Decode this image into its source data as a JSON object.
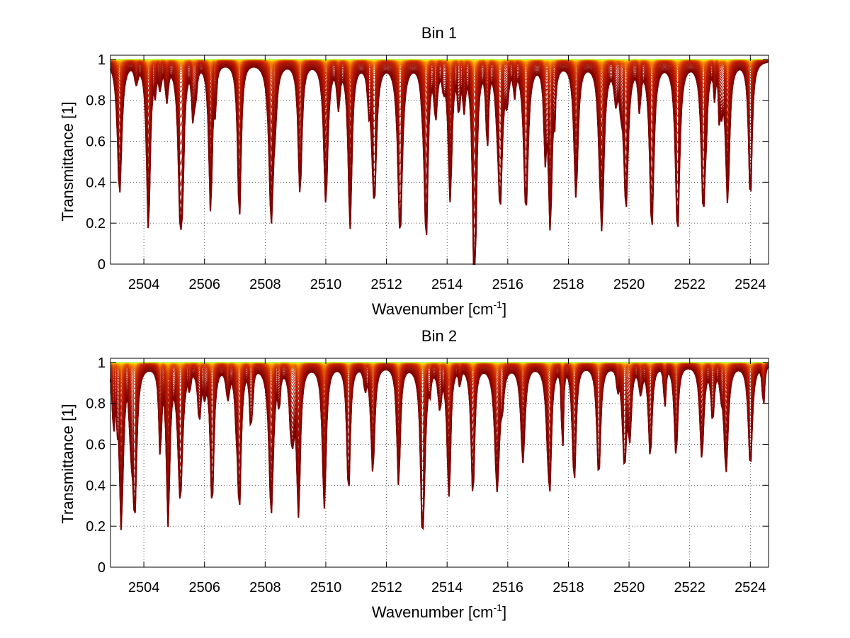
{
  "chart_data": [
    {
      "type": "line",
      "title": "Bin 1",
      "xlabel": "Wavenumber [cm",
      "xlabel_sup": "-1",
      "xlabel_tail": "]",
      "ylabel": "Transmittance [1]",
      "xlim": [
        2502.9,
        2524.6
      ],
      "ylim": [
        0,
        1.02
      ],
      "xticks": [
        2504,
        2506,
        2508,
        2510,
        2512,
        2514,
        2516,
        2518,
        2520,
        2522,
        2524
      ],
      "yticks": [
        0,
        0.2,
        0.4,
        0.6,
        0.8,
        1
      ],
      "ytick_labels": [
        "0",
        "0.2",
        "0.4",
        "0.6",
        "0.8",
        "1"
      ],
      "grid": true,
      "grid_style": "dotted",
      "series_count": 60,
      "line_baselines": [
        0.0,
        0.012,
        0.026,
        0.045,
        0.07,
        0.1,
        0.135,
        0.175,
        0.22,
        0.27,
        0.32,
        0.37,
        0.42,
        0.47,
        0.52,
        0.565,
        0.61,
        0.65,
        0.69,
        0.725,
        0.76,
        0.79,
        0.815,
        0.84,
        0.86,
        0.878,
        0.893,
        0.906,
        0.918,
        0.928,
        0.937,
        0.945,
        0.952,
        0.958,
        0.963,
        0.968,
        0.972,
        0.976,
        0.979,
        0.982,
        0.984,
        0.986,
        0.988,
        0.99,
        0.991,
        0.992,
        0.993,
        0.994,
        0.995,
        0.996
      ],
      "line_centers": [
        2503.2,
        2504.15,
        2505.2,
        2506.2,
        2507.15,
        2508.2,
        2509.15,
        2510.0,
        2510.8,
        2511.6,
        2512.45,
        2513.3,
        2514.1,
        2514.9,
        2515.75,
        2516.6,
        2517.4,
        2518.25,
        2519.1,
        2519.9,
        2520.75,
        2521.6,
        2522.45,
        2523.25,
        2524.0
      ],
      "line_depth": 0.85,
      "colors": [
        "#7a0000",
        "#c41e00",
        "#ea6a00",
        "#ffb400",
        "#ffe600",
        "#9dff3a"
      ]
    },
    {
      "type": "line",
      "title": "Bin 2",
      "xlabel": "Wavenumber [cm",
      "xlabel_sup": "-1",
      "xlabel_tail": "]",
      "ylabel": "Transmittance [1]",
      "xlim": [
        2502.9,
        2524.6
      ],
      "ylim": [
        0,
        1.02
      ],
      "xticks": [
        2504,
        2506,
        2508,
        2510,
        2512,
        2514,
        2516,
        2518,
        2520,
        2522,
        2524
      ],
      "yticks": [
        0,
        0.2,
        0.4,
        0.6,
        0.8,
        1
      ],
      "ytick_labels": [
        "0",
        "0.2",
        "0.4",
        "0.6",
        "0.8",
        "1"
      ],
      "grid": true,
      "grid_style": "dotted",
      "series_count": 60,
      "line_baselines": [
        0.0,
        0.01,
        0.022,
        0.038,
        0.06,
        0.088,
        0.12,
        0.16,
        0.2,
        0.245,
        0.29,
        0.34,
        0.39,
        0.44,
        0.49,
        0.54,
        0.585,
        0.63,
        0.67,
        0.71,
        0.745,
        0.775,
        0.805,
        0.83,
        0.853,
        0.872,
        0.889,
        0.903,
        0.916,
        0.927,
        0.937,
        0.945,
        0.952,
        0.958,
        0.964,
        0.969,
        0.973,
        0.977,
        0.98,
        0.983,
        0.985,
        0.987,
        0.989,
        0.991,
        0.992,
        0.993,
        0.994,
        0.995,
        0.996,
        0.997
      ],
      "line_centers": [
        2503.25,
        2503.7,
        2504.8,
        2505.2,
        2506.25,
        2507.15,
        2508.2,
        2509.1,
        2509.95,
        2510.75,
        2511.55,
        2512.4,
        2513.2,
        2514.05,
        2514.85,
        2515.65,
        2516.5,
        2517.35,
        2518.2,
        2519.0,
        2519.85,
        2520.7,
        2521.55,
        2522.4,
        2523.2,
        2524.0
      ],
      "line_depth": 0.8,
      "colors": [
        "#7a0000",
        "#c41e00",
        "#ea6a00",
        "#ffb400",
        "#ffe600",
        "#9dff3a"
      ]
    }
  ]
}
